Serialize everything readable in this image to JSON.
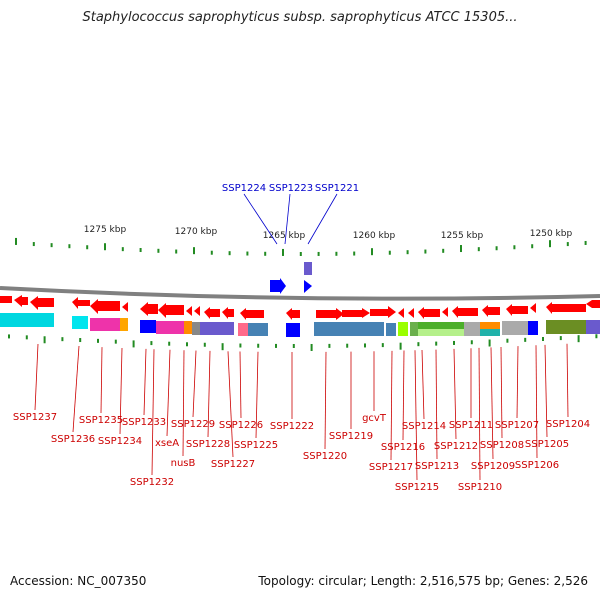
{
  "title": "Staphylococcus saprophyticus subsp. saprophyticus ATCC 15305...",
  "accession": "Accession: NC_007350",
  "topology": "Topology: circular; Length: 2,516,575 bp; Genes: 2,526",
  "colors": {
    "gene_red": "#ff0000",
    "label_red": "#cc0000",
    "label_blue": "#0000cc",
    "tick_green": "#228b22",
    "blue_gene": "#0000ff",
    "backbone": "#808080"
  },
  "kbp_labels": [
    "1275 kbp",
    "1270 kbp",
    "1265 kbp",
    "1260 kbp",
    "1255 kbp",
    "1250 kbp"
  ],
  "top_genes": [
    "SSP1224",
    "SSP1223",
    "SSP1221"
  ],
  "bottom_genes": [
    "SSP1237",
    "SSP1236",
    "SSP1235",
    "SSP1234",
    "SSP1233",
    "SSP1232",
    "xseA",
    "nusB",
    "SSP1229",
    "SSP1228",
    "SSP1227",
    "SSP1226",
    "SSP1225",
    "SSP1222",
    "SSP1220",
    "SSP1219",
    "gcvT",
    "SSP1217",
    "SSP1216",
    "SSP1215",
    "SSP1214",
    "SSP1213",
    "SSP1212",
    "SSP1211",
    "SSP1210",
    "SSP1209",
    "SSP1208",
    "SSP1207",
    "SSP1206",
    "SSP1205",
    "SSP1204"
  ]
}
